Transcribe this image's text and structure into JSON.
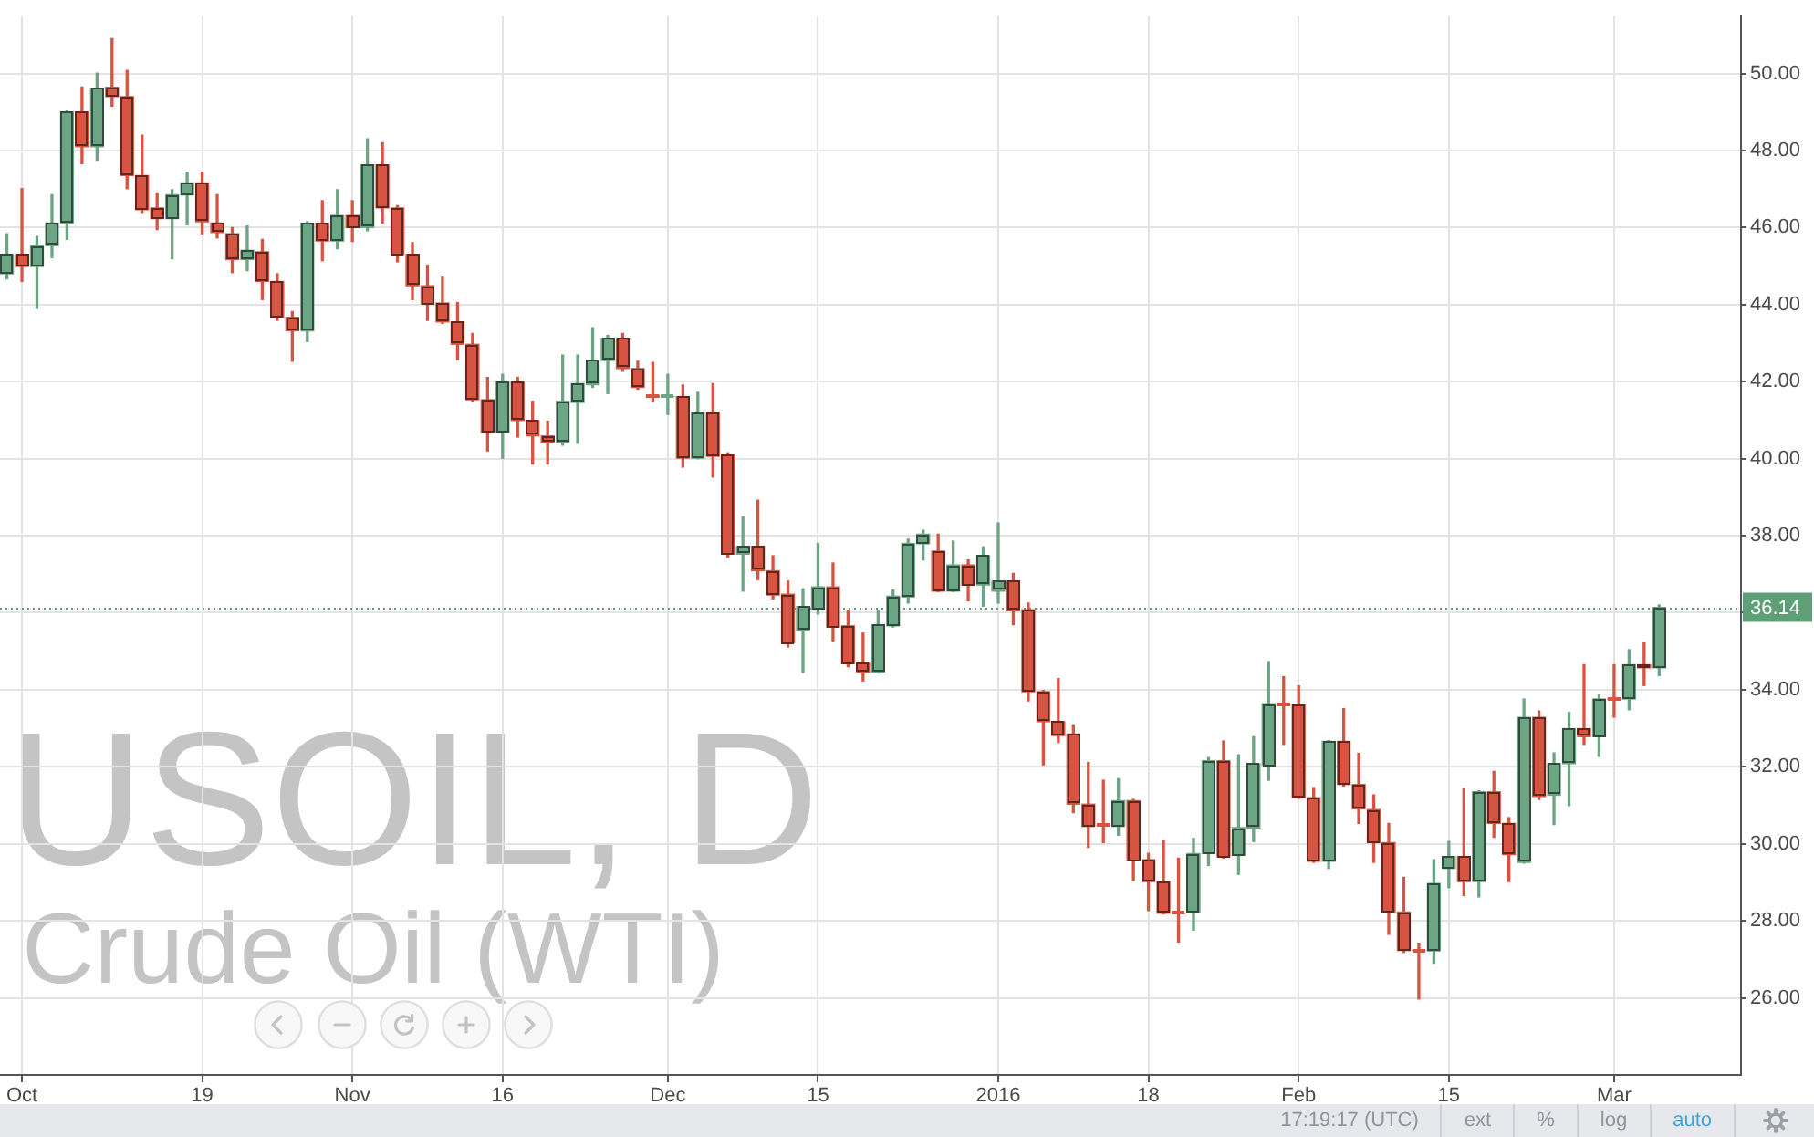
{
  "chart_data": {
    "type": "candlestick",
    "title": "USOIL, D",
    "subtitle": "Crude Oil (WTI)",
    "categories": [
      null,
      "Oct",
      null,
      null,
      null,
      null,
      null,
      null,
      null,
      null,
      null,
      null,
      null,
      "19",
      null,
      null,
      null,
      null,
      null,
      null,
      null,
      null,
      null,
      "Nov",
      null,
      null,
      null,
      null,
      null,
      null,
      null,
      null,
      null,
      "16",
      null,
      null,
      null,
      null,
      null,
      null,
      null,
      null,
      null,
      null,
      "Dec",
      null,
      null,
      null,
      null,
      null,
      null,
      null,
      null,
      null,
      "15",
      null,
      null,
      null,
      null,
      null,
      null,
      null,
      null,
      null,
      null,
      null,
      "2016",
      null,
      null,
      null,
      null,
      null,
      null,
      null,
      null,
      null,
      "18",
      null,
      null,
      null,
      null,
      null,
      null,
      null,
      null,
      null,
      "Feb",
      null,
      null,
      null,
      null,
      null,
      null,
      null,
      null,
      null,
      "15",
      null,
      null,
      null,
      null,
      null,
      null,
      null,
      null,
      null,
      null,
      "Mar",
      null,
      null,
      null
    ],
    "ohlc": [
      [
        44.8,
        45.84,
        44.67,
        45.3
      ],
      [
        45.3,
        47.01,
        44.6,
        44.99
      ],
      [
        44.99,
        45.77,
        43.9,
        45.53
      ],
      [
        45.53,
        46.85,
        45.22,
        46.12
      ],
      [
        46.12,
        49.03,
        45.69,
        49.0
      ],
      [
        49.0,
        49.65,
        47.66,
        48.1
      ],
      [
        48.1,
        50.01,
        47.75,
        49.62
      ],
      [
        49.64,
        50.9,
        49.15,
        49.4
      ],
      [
        49.4,
        50.08,
        47.01,
        47.35
      ],
      [
        47.35,
        48.4,
        46.39,
        46.46
      ],
      [
        46.51,
        46.9,
        45.95,
        46.23
      ],
      [
        46.23,
        46.98,
        45.19,
        46.85
      ],
      [
        46.85,
        47.44,
        46.07,
        47.16
      ],
      [
        47.16,
        47.44,
        45.84,
        46.15
      ],
      [
        46.12,
        46.85,
        45.73,
        45.87
      ],
      [
        45.84,
        46.0,
        44.83,
        45.17
      ],
      [
        45.17,
        46.04,
        44.88,
        45.41
      ],
      [
        45.37,
        45.69,
        44.13,
        44.6
      ],
      [
        44.6,
        44.8,
        43.59,
        43.67
      ],
      [
        43.67,
        43.82,
        42.53,
        43.32
      ],
      [
        43.32,
        46.15,
        43.04,
        46.11
      ],
      [
        46.11,
        46.7,
        45.14,
        45.65
      ],
      [
        45.65,
        46.98,
        45.45,
        46.31
      ],
      [
        46.31,
        46.7,
        45.64,
        46.0
      ],
      [
        46.0,
        48.3,
        45.92,
        47.63
      ],
      [
        47.63,
        48.2,
        46.12,
        46.51
      ],
      [
        46.51,
        46.57,
        45.11,
        45.3
      ],
      [
        45.3,
        45.61,
        44.13,
        44.49
      ],
      [
        44.49,
        45.02,
        43.59,
        44.02
      ],
      [
        44.04,
        44.71,
        43.51,
        43.55
      ],
      [
        43.55,
        44.05,
        42.57,
        42.97
      ],
      [
        42.97,
        43.25,
        41.49,
        41.53
      ],
      [
        41.53,
        42.11,
        40.2,
        40.68
      ],
      [
        40.68,
        42.19,
        40.01,
        42.0
      ],
      [
        42.0,
        42.11,
        40.56,
        40.99
      ],
      [
        40.99,
        41.49,
        39.86,
        40.59
      ],
      [
        40.59,
        40.97,
        39.86,
        40.43
      ],
      [
        40.43,
        42.69,
        40.35,
        41.49
      ],
      [
        41.46,
        42.69,
        40.4,
        41.95
      ],
      [
        41.92,
        43.4,
        41.85,
        42.55
      ],
      [
        42.55,
        43.2,
        41.69,
        43.12
      ],
      [
        43.12,
        43.25,
        42.27,
        42.34
      ],
      [
        42.34,
        42.53,
        41.8,
        41.85
      ],
      [
        41.64,
        42.5,
        41.49,
        41.6
      ],
      [
        41.61,
        42.19,
        41.15,
        41.61
      ],
      [
        41.61,
        41.91,
        39.78,
        40.01
      ],
      [
        40.01,
        41.72,
        40.0,
        41.21
      ],
      [
        41.21,
        41.95,
        39.52,
        40.06
      ],
      [
        40.12,
        40.15,
        37.44,
        37.52
      ],
      [
        37.52,
        38.49,
        36.56,
        37.72
      ],
      [
        37.72,
        38.92,
        36.86,
        37.09
      ],
      [
        37.09,
        37.48,
        36.36,
        36.46
      ],
      [
        36.48,
        36.82,
        35.11,
        35.22
      ],
      [
        35.53,
        36.62,
        34.45,
        36.16
      ],
      [
        36.12,
        37.8,
        35.97,
        36.67
      ],
      [
        36.67,
        37.29,
        35.27,
        35.63
      ],
      [
        35.66,
        36.05,
        34.6,
        34.68
      ],
      [
        34.69,
        35.47,
        34.23,
        34.46
      ],
      [
        34.46,
        36.05,
        34.44,
        35.69
      ],
      [
        35.66,
        36.59,
        35.63,
        36.43
      ],
      [
        36.41,
        37.91,
        36.25,
        37.8
      ],
      [
        37.79,
        38.14,
        37.37,
        38.04
      ],
      [
        37.6,
        38.04,
        36.55,
        36.56
      ],
      [
        36.56,
        37.86,
        36.55,
        37.24
      ],
      [
        37.24,
        37.37,
        36.31,
        36.72
      ],
      [
        36.72,
        37.71,
        36.17,
        37.48
      ],
      [
        36.56,
        38.33,
        36.25,
        36.82
      ],
      [
        36.82,
        37.02,
        35.69,
        36.05
      ],
      [
        36.08,
        36.25,
        33.71,
        33.95
      ],
      [
        33.95,
        33.98,
        32.05,
        33.17
      ],
      [
        33.17,
        34.29,
        32.63,
        32.81
      ],
      [
        32.85,
        33.09,
        30.81,
        31.03
      ],
      [
        31.03,
        32.11,
        29.91,
        30.45
      ],
      [
        30.48,
        31.65,
        30.03,
        30.48
      ],
      [
        30.45,
        31.69,
        30.22,
        31.12
      ],
      [
        31.12,
        31.15,
        29.05,
        29.56
      ],
      [
        29.59,
        29.75,
        28.27,
        29.02
      ],
      [
        29.02,
        30.09,
        28.18,
        28.2
      ],
      [
        28.2,
        29.63,
        27.45,
        28.2
      ],
      [
        28.23,
        30.14,
        27.76,
        29.75
      ],
      [
        29.75,
        32.24,
        29.44,
        32.16
      ],
      [
        32.16,
        32.67,
        29.63,
        29.67
      ],
      [
        29.7,
        32.31,
        29.21,
        30.42
      ],
      [
        30.4,
        32.78,
        30.06,
        32.08
      ],
      [
        32.05,
        34.73,
        31.65,
        33.64
      ],
      [
        33.61,
        34.34,
        32.58,
        33.61
      ],
      [
        33.61,
        34.1,
        31.18,
        31.2
      ],
      [
        31.2,
        31.46,
        29.52,
        29.55
      ],
      [
        29.55,
        32.68,
        29.36,
        32.66
      ],
      [
        32.66,
        33.51,
        31.5,
        31.54
      ],
      [
        31.54,
        32.35,
        30.53,
        30.91
      ],
      [
        30.89,
        31.27,
        29.52,
        30.03
      ],
      [
        30.03,
        30.53,
        27.65,
        28.23
      ],
      [
        28.23,
        29.13,
        27.18,
        27.23
      ],
      [
        27.23,
        27.42,
        25.97,
        27.23
      ],
      [
        27.22,
        29.59,
        26.9,
        28.97
      ],
      [
        29.36,
        30.06,
        28.86,
        29.67
      ],
      [
        29.67,
        31.43,
        28.66,
        29.02
      ],
      [
        29.02,
        31.38,
        28.62,
        31.35
      ],
      [
        31.35,
        31.88,
        30.17,
        30.53
      ],
      [
        30.53,
        30.68,
        29.02,
        29.72
      ],
      [
        29.52,
        33.76,
        29.5,
        33.28
      ],
      [
        33.28,
        33.45,
        31.15,
        31.23
      ],
      [
        31.26,
        32.36,
        30.5,
        32.08
      ],
      [
        32.08,
        33.41,
        30.99,
        32.99
      ],
      [
        32.99,
        34.65,
        32.58,
        32.78
      ],
      [
        32.78,
        33.87,
        32.27,
        33.76
      ],
      [
        33.76,
        34.65,
        33.29,
        33.76
      ],
      [
        33.76,
        35.04,
        33.48,
        34.65
      ],
      [
        34.65,
        35.22,
        34.11,
        34.57
      ],
      [
        34.57,
        36.2,
        34.37,
        36.14
      ]
    ],
    "colors": [
      "#6ba583",
      "#d75442",
      "#6ba583",
      "#6ba583",
      "#6ba583",
      "#d75442",
      "#6ba583",
      "#d75442",
      "#d75442",
      "#d75442",
      "#d75442",
      "#6ba583",
      "#6ba583",
      "#d75442",
      "#d75442",
      "#d75442",
      "#6ba583",
      "#d75442",
      "#d75442",
      "#d75442",
      "#6ba583",
      "#d75442",
      "#6ba583",
      "#d75442",
      "#6ba583",
      "#d75442",
      "#d75442",
      "#d75442",
      "#d75442",
      "#d75442",
      "#d75442",
      "#d75442",
      "#d75442",
      "#6ba583",
      "#d75442",
      "#d75442",
      "#d75442",
      "#6ba583",
      "#6ba583",
      "#6ba583",
      "#6ba583",
      "#d75442",
      "#d75442",
      "#d75442",
      "#6ba583",
      "#d75442",
      "#6ba583",
      "#d75442",
      "#d75442",
      "#6ba583",
      "#d75442",
      "#d75442",
      "#d75442",
      "#6ba583",
      "#6ba583",
      "#d75442",
      "#d75442",
      "#d75442",
      "#6ba583",
      "#6ba583",
      "#6ba583",
      "#6ba583",
      "#d75442",
      "#6ba583",
      "#d75442",
      "#6ba583",
      "#6ba583",
      "#d75442",
      "#d75442",
      "#d75442",
      "#d75442",
      "#d75442",
      "#d75442",
      "#d75442",
      "#6ba583",
      "#d75442",
      "#d75442",
      "#d75442",
      "#d75442",
      "#6ba583",
      "#6ba583",
      "#d75442",
      "#6ba583",
      "#6ba583",
      "#6ba583",
      "#d75442",
      "#d75442",
      "#d75442",
      "#6ba583",
      "#d75442",
      "#d75442",
      "#d75442",
      "#d75442",
      "#d75442",
      "#d75442",
      "#6ba583",
      "#6ba583",
      "#d75442",
      "#6ba583",
      "#d75442",
      "#d75442",
      "#6ba583",
      "#d75442",
      "#6ba583",
      "#6ba583",
      "#d75442",
      "#6ba583",
      "#d75442",
      "#6ba583",
      "#d75442",
      "#6ba583"
    ],
    "ylim": [
      24,
      51.5
    ],
    "yticks": [
      {
        "value": 26,
        "label": "26.00"
      },
      {
        "value": 28,
        "label": "28.00"
      },
      {
        "value": 30,
        "label": "30.00"
      },
      {
        "value": 32,
        "label": "32.00"
      },
      {
        "value": 34,
        "label": "34.00"
      },
      {
        "value": 36,
        "label": null
      },
      {
        "value": 38,
        "label": "38.00"
      },
      {
        "value": 40,
        "label": "40.00"
      },
      {
        "value": 42,
        "label": "42.00"
      },
      {
        "value": 44,
        "label": "44.00"
      },
      {
        "value": 46,
        "label": "46.00"
      },
      {
        "value": 48,
        "label": "48.00"
      },
      {
        "value": 50,
        "label": "50.00"
      }
    ],
    "grid": true,
    "ref_lines": [
      {
        "axis": "y",
        "value": 36.14,
        "label": "36.14",
        "color": "#5f9f78",
        "line_style": "dotted"
      }
    ],
    "annotations": [
      "17:19:17 (UTC)",
      "ext",
      "%",
      "log",
      "auto"
    ]
  }
}
